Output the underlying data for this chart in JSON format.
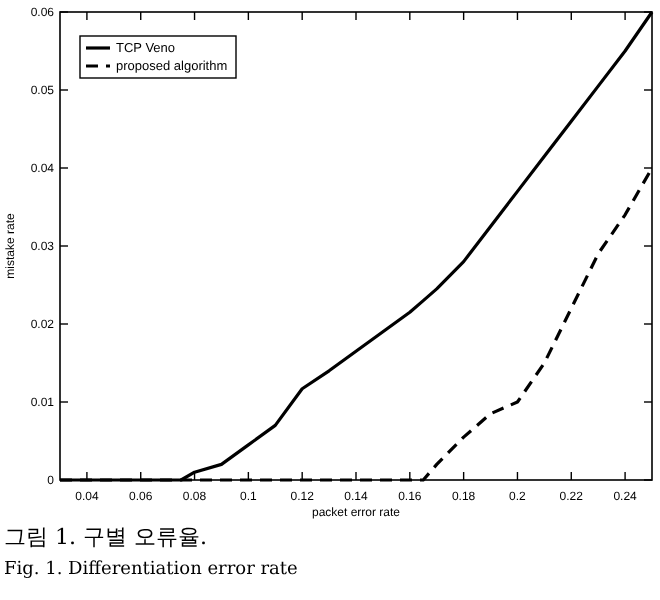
{
  "chart_data": {
    "type": "line",
    "xlabel": "packet error rate",
    "ylabel": "mistake rate",
    "xlim": [
      0.03,
      0.25
    ],
    "ylim": [
      0,
      0.06
    ],
    "xticks": [
      0.04,
      0.06,
      0.08,
      0.1,
      0.12,
      0.14,
      0.16,
      0.18,
      0.2,
      0.22,
      0.24
    ],
    "yticks": [
      0,
      0.01,
      0.02,
      0.03,
      0.04,
      0.05,
      0.06
    ],
    "x": [
      0.03,
      0.04,
      0.05,
      0.06,
      0.07,
      0.075,
      0.08,
      0.09,
      0.1,
      0.11,
      0.12,
      0.13,
      0.14,
      0.15,
      0.16,
      0.165,
      0.17,
      0.18,
      0.19,
      0.2,
      0.21,
      0.22,
      0.23,
      0.24,
      0.25
    ],
    "series": [
      {
        "name": "TCP Veno",
        "color": "#000000",
        "line_style": "solid",
        "values": [
          0,
          0,
          0,
          0,
          0,
          0,
          0.001,
          0.002,
          0.0045,
          0.007,
          0.0117,
          0.014,
          0.0165,
          0.019,
          0.0215,
          0.023,
          0.0245,
          0.028,
          0.0325,
          0.037,
          0.0415,
          0.046,
          0.0505,
          0.055,
          0.06
        ]
      },
      {
        "name": "proposed algorithm",
        "color": "#000000",
        "line_style": "dashed",
        "values": [
          0,
          0,
          0,
          0,
          0,
          0,
          0,
          0,
          0,
          0,
          0,
          0,
          0,
          0,
          0,
          0,
          0.002,
          0.0055,
          0.0085,
          0.01,
          0.015,
          0.022,
          0.029,
          0.034,
          0.04
        ]
      }
    ],
    "legend": "top left",
    "grid": false,
    "marker": "none",
    "annotations": [
      "그림 1. 구별 오류율.",
      "Fig. 1. Differentiation error rate"
    ]
  }
}
